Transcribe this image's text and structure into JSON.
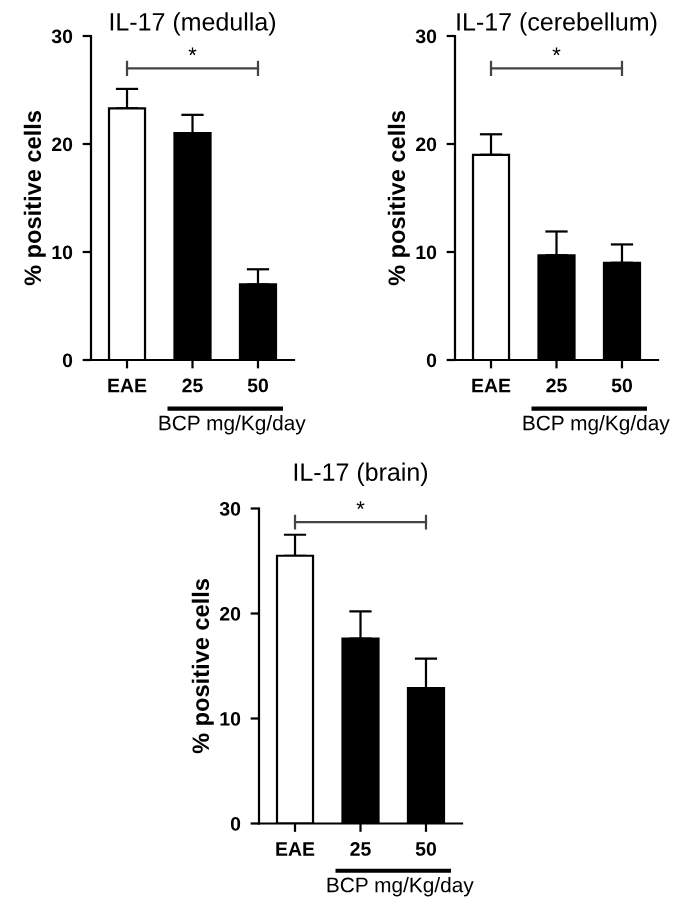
{
  "chart_data": [
    {
      "type": "bar",
      "title": "IL-17 (medulla)",
      "ylabel": "% positive cells",
      "categories": [
        "EAE",
        "25",
        "50"
      ],
      "values": [
        23.3,
        21,
        7
      ],
      "colors": [
        "#ffffff",
        "#000000",
        "#000000"
      ],
      "errors": [
        [
          23.3,
          25.1
        ],
        [
          21,
          22.7
        ],
        [
          7,
          8.4
        ]
      ],
      "ylim": [
        0,
        30
      ],
      "yticks": [
        0,
        10,
        20,
        30
      ],
      "grid": false,
      "annotations": [
        "*",
        "BCP mg/Kg/day"
      ]
    },
    {
      "type": "bar",
      "title": "IL-17 (cerebellum)",
      "ylabel": "% positive cells",
      "categories": [
        "EAE",
        "25",
        "50"
      ],
      "values": [
        19,
        9.7,
        9
      ],
      "colors": [
        "#ffffff",
        "#000000",
        "#000000"
      ],
      "errors": [
        [
          19,
          20.9
        ],
        [
          9.7,
          11.9
        ],
        [
          9,
          10.7
        ]
      ],
      "ylim": [
        0,
        30
      ],
      "yticks": [
        0,
        10,
        20,
        30
      ],
      "grid": false,
      "annotations": [
        "*",
        "BCP mg/Kg/day"
      ]
    },
    {
      "type": "bar",
      "title": "IL-17 (brain)",
      "ylabel": "% positive cells",
      "categories": [
        "EAE",
        "25",
        "50"
      ],
      "values": [
        25.5,
        17.6,
        12.9
      ],
      "colors": [
        "#ffffff",
        "#000000",
        "#000000"
      ],
      "errors": [
        [
          25.5,
          27.5
        ],
        [
          17.6,
          20.2
        ],
        [
          12.9,
          15.7
        ]
      ],
      "ylim": [
        0,
        30
      ],
      "yticks": [
        0,
        10,
        20,
        30
      ],
      "grid": false,
      "annotations": [
        "*",
        "BCP mg/Kg/day"
      ]
    }
  ]
}
